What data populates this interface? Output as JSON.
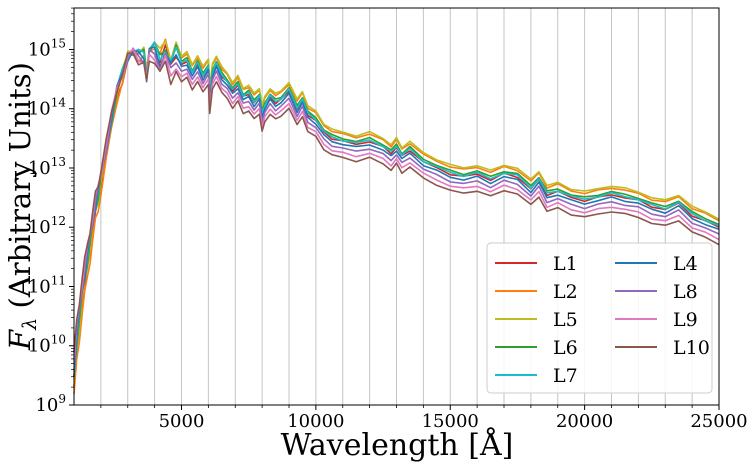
{
  "chart_data": {
    "type": "line",
    "xlabel": "Wavelength [Å]",
    "ylabel_main": "F",
    "ylabel_sub": "λ",
    "ylabel_rest": " (Arbitrary Units)",
    "xlim": [
      1000,
      25000
    ],
    "ylim_log10": [
      9,
      15.7
    ],
    "x_ticks": [
      5000,
      10000,
      15000,
      20000,
      25000
    ],
    "x_tick_labels": [
      "5000",
      "10000",
      "15000",
      "20000",
      "25000"
    ],
    "y_ticks_log10": [
      9,
      10,
      11,
      12,
      13,
      14,
      15
    ],
    "y_tick_labels": [
      {
        "base": "10",
        "exp": "9"
      },
      {
        "base": "10",
        "exp": "10"
      },
      {
        "base": "10",
        "exp": "11"
      },
      {
        "base": "10",
        "exp": "12"
      },
      {
        "base": "10",
        "exp": "13"
      },
      {
        "base": "10",
        "exp": "14"
      },
      {
        "base": "10",
        "exp": "15"
      }
    ],
    "vertical_lines": [
      2000,
      3000,
      4000,
      5000,
      6000,
      7000,
      8000,
      9000,
      10000,
      11000,
      12000,
      13000,
      14000,
      15000,
      16000,
      17000,
      18000,
      19000,
      20000,
      21000,
      22000,
      23000,
      24000
    ],
    "legend_location": "lower right",
    "legend_columns": 2,
    "base_curve": {
      "x": [
        1000,
        1100,
        1200,
        1300,
        1400,
        1500,
        1600,
        1700,
        1800,
        1900,
        2000,
        2200,
        2400,
        2600,
        2800,
        3000,
        3200,
        3400,
        3600,
        3700,
        3800,
        4000,
        4200,
        4400,
        4600,
        4800,
        5000,
        5200,
        5400,
        5600,
        5800,
        6000,
        6050,
        6150,
        6300,
        6500,
        6700,
        6900,
        7100,
        7300,
        7500,
        7700,
        7900,
        8000,
        8100,
        8300,
        8500,
        8700,
        9000,
        9300,
        9500,
        9700,
        10000,
        10300,
        10600,
        11000,
        11500,
        12000,
        12500,
        12800,
        13000,
        13200,
        13500,
        14000,
        14500,
        15000,
        15500,
        16000,
        16500,
        17000,
        17500,
        18000,
        18300,
        18600,
        19000,
        19500,
        20000,
        20500,
        21000,
        21500,
        22000,
        22500,
        23000,
        23500,
        24000,
        24500,
        25000
      ],
      "log10_flux": [
        9.3,
        9.9,
        10.3,
        10.7,
        11.0,
        11.3,
        11.6,
        11.9,
        12.2,
        12.4,
        12.7,
        13.2,
        13.7,
        14.2,
        14.5,
        14.8,
        14.9,
        14.85,
        14.85,
        14.5,
        14.95,
        15.0,
        14.8,
        15.0,
        14.75,
        14.95,
        14.75,
        14.8,
        14.6,
        14.75,
        14.55,
        14.7,
        14.2,
        14.6,
        14.75,
        14.55,
        14.45,
        14.3,
        14.4,
        14.2,
        14.25,
        14.1,
        14.2,
        13.9,
        14.05,
        14.2,
        14.1,
        14.15,
        14.3,
        14.0,
        14.15,
        13.9,
        13.8,
        13.6,
        13.5,
        13.45,
        13.4,
        13.45,
        13.35,
        13.25,
        13.35,
        13.2,
        13.3,
        13.1,
        13.0,
        12.9,
        12.85,
        12.9,
        12.8,
        12.9,
        12.85,
        12.65,
        12.8,
        12.55,
        12.6,
        12.5,
        12.45,
        12.5,
        12.55,
        12.5,
        12.45,
        12.35,
        12.3,
        12.4,
        12.2,
        12.1,
        12.0
      ]
    },
    "series": [
      {
        "name": "L1",
        "color": "#d62728",
        "offset": 0.0,
        "uv_offset": 0.0
      },
      {
        "name": "L2",
        "color": "#ff7f0e",
        "offset": 0.12,
        "uv_offset": -0.3
      },
      {
        "name": "L5",
        "color": "#bcbd22",
        "offset": 0.15,
        "uv_offset": -0.1
      },
      {
        "name": "L6",
        "color": "#2ca02c",
        "offset": 0.05,
        "uv_offset": 0.1
      },
      {
        "name": "L7",
        "color": "#17becf",
        "offset": 0.02,
        "uv_offset": 0.2
      },
      {
        "name": "L4",
        "color": "#1f77b4",
        "offset": -0.05,
        "uv_offset": 0.3
      },
      {
        "name": "L8",
        "color": "#9467bd",
        "offset": -0.12,
        "uv_offset": 0.45
      },
      {
        "name": "L9",
        "color": "#e377c2",
        "offset": -0.2,
        "uv_offset": 0.65
      },
      {
        "name": "L10",
        "color": "#8c564b",
        "offset": -0.28,
        "uv_offset": 0.8
      }
    ]
  }
}
